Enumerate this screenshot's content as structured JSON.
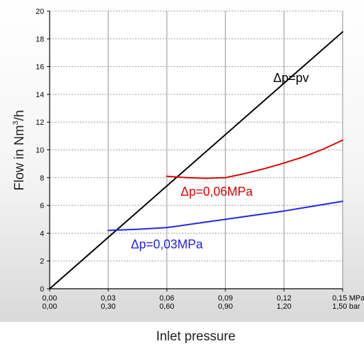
{
  "chart_data": {
    "type": "line",
    "title": "",
    "xlabel": "Inlet pressure",
    "ylabel": "Flow in Nm",
    "ylabel_superscript": "3",
    "ylabel_suffix": "/h",
    "xlim": [
      0,
      0.15
    ],
    "ylim": [
      0,
      20
    ],
    "grid": true,
    "x_ticks": [
      0,
      0.03,
      0.06,
      0.09,
      0.12,
      0.15
    ],
    "x_tick_labels_mpa": [
      "0,00",
      "0,03",
      "0,06",
      "0,09",
      "0,12",
      "0,15"
    ],
    "x_tick_labels_bar": [
      "0,00",
      "0,30",
      "0,60",
      "0,90",
      "1,20",
      "1,50"
    ],
    "x_unit_mpa": "MPa",
    "x_unit_bar": "bar",
    "y_ticks": [
      0,
      2,
      4,
      6,
      8,
      10,
      12,
      14,
      16,
      18,
      20
    ],
    "y_tick_labels": [
      "0",
      "2",
      "4",
      "6",
      "8",
      "10",
      "12",
      "14",
      "16",
      "18",
      "20"
    ],
    "series": [
      {
        "name": "Δp=pv",
        "color": "#000000",
        "x": [
          0,
          0.15
        ],
        "y": [
          0,
          18.5
        ]
      },
      {
        "name": "Δp=0,06MPa",
        "color": "#e00000",
        "x": [
          0.06,
          0.07,
          0.08,
          0.09,
          0.1,
          0.11,
          0.12,
          0.13,
          0.14,
          0.15
        ],
        "y": [
          8.1,
          8.0,
          7.95,
          8.0,
          8.3,
          8.65,
          9.05,
          9.5,
          10.05,
          10.7
        ]
      },
      {
        "name": "Δp=0,03MPa",
        "color": "#2222ee",
        "x": [
          0.03,
          0.045,
          0.06,
          0.075,
          0.09,
          0.105,
          0.12,
          0.135,
          0.15
        ],
        "y": [
          4.2,
          4.28,
          4.4,
          4.7,
          5.0,
          5.3,
          5.6,
          5.95,
          6.3
        ]
      }
    ]
  }
}
